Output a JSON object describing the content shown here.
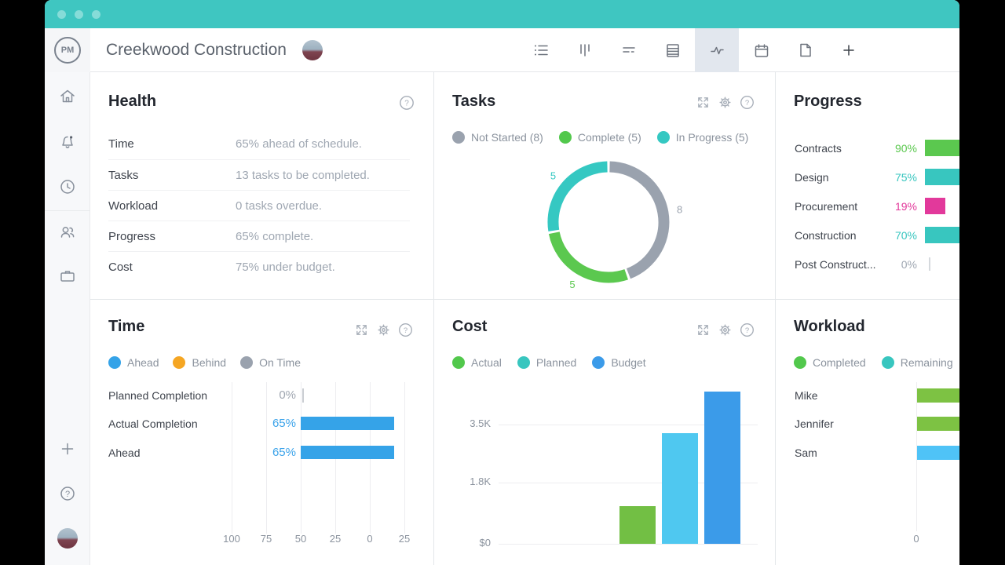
{
  "colors": {
    "titlebar_teal": "#3fc6c1",
    "selected_tab_bg": "#e2e7ee",
    "panel_border": "#e4e7ea",
    "accent_blue": "#35a3e8",
    "accent_green": "#52c84c",
    "accent_teal": "#38c6bf",
    "accent_pink": "#e2399b",
    "accent_orange": "#f5a623",
    "neutral_gray": "#9aa2ae"
  },
  "window": {
    "title": "Creekwood Construction",
    "logo_text": "PM"
  },
  "toolbar": {
    "items": [
      {
        "icon": "list-view",
        "selected": false
      },
      {
        "icon": "board-view",
        "selected": false
      },
      {
        "icon": "gantt-view",
        "selected": false
      },
      {
        "icon": "sheet-view",
        "selected": false
      },
      {
        "icon": "dashboard-view",
        "selected": true
      },
      {
        "icon": "calendar-view",
        "selected": false
      },
      {
        "icon": "page-view",
        "selected": false
      },
      {
        "icon": "add-view",
        "selected": false
      }
    ]
  },
  "sidebar": {
    "items": [
      "home",
      "notifications",
      "recent",
      "team",
      "projects"
    ],
    "bottom_items": [
      "add",
      "help",
      "account-avatar"
    ]
  },
  "panels": {
    "health": {
      "title": "Health",
      "rows": [
        {
          "label": "Time",
          "value": "65% ahead of schedule."
        },
        {
          "label": "Tasks",
          "value": "13 tasks to be completed."
        },
        {
          "label": "Workload",
          "value": "0 tasks overdue."
        },
        {
          "label": "Progress",
          "value": "65% complete."
        },
        {
          "label": "Cost",
          "value": "75% under budget."
        }
      ]
    },
    "tasks": {
      "title": "Tasks",
      "chart_data": {
        "type": "pie",
        "donut": true,
        "title": "Tasks",
        "legend": [
          {
            "label": "Not Started (8)",
            "color": "#9aa2ae"
          },
          {
            "label": "Complete (5)",
            "color": "#52c84c"
          },
          {
            "label": "In Progress (5)",
            "color": "#35c8c2"
          }
        ],
        "segments": [
          {
            "label": "Not Started",
            "value": 8,
            "color": "#9aa2ae"
          },
          {
            "label": "Complete",
            "value": 5,
            "color": "#5bc84f"
          },
          {
            "label": "In Progress",
            "value": 5,
            "color": "#35c8c2"
          }
        ]
      }
    },
    "progress": {
      "title": "Progress",
      "chart_data": {
        "type": "bar",
        "orientation": "horizontal",
        "title": "Progress",
        "rows": [
          {
            "label": "Contracts",
            "value_label": "90%",
            "value": 90,
            "color": "#5bc84f",
            "clipped": true
          },
          {
            "label": "Design",
            "value_label": "75%",
            "value": 75,
            "color": "#38c6bf",
            "clipped": true
          },
          {
            "label": "Procurement",
            "value_label": "19%",
            "value": 19,
            "color": "#e2399b",
            "clipped": false
          },
          {
            "label": "Construction",
            "value_label": "70%",
            "value": 70,
            "color": "#38c6bf",
            "clipped": true
          },
          {
            "label": "Post Construct...",
            "value_label": "0%",
            "value": 0,
            "color": "#9aa2ae",
            "clipped": false
          }
        ]
      }
    },
    "time": {
      "title": "Time",
      "legend": [
        {
          "label": "Ahead",
          "color": "#35a3e8"
        },
        {
          "label": "Behind",
          "color": "#f5a623"
        },
        {
          "label": "On Time",
          "color": "#9aa2ae"
        }
      ],
      "chart_data": {
        "type": "bar",
        "orientation": "horizontal",
        "title": "Time",
        "rows": [
          {
            "label": "Planned Completion",
            "value_label": "0%",
            "value": 0,
            "color": "#35a3e8"
          },
          {
            "label": "Actual Completion",
            "value_label": "65%",
            "value": 65,
            "color": "#35a3e8"
          },
          {
            "label": "Ahead",
            "value_label": "65%",
            "value": 65,
            "color": "#35a3e8"
          }
        ],
        "x_axis": [
          "100",
          "75",
          "50",
          "25",
          "0",
          "25"
        ]
      }
    },
    "cost": {
      "title": "Cost",
      "legend": [
        {
          "label": "Actual",
          "color": "#52c84c"
        },
        {
          "label": "Planned",
          "color": "#38c6bf"
        },
        {
          "label": "Budget",
          "color": "#3b9be9"
        }
      ],
      "chart_data": {
        "type": "bar",
        "title": "Cost",
        "series": [
          {
            "name": "Actual",
            "value": 1100,
            "color": "#72bf44"
          },
          {
            "name": "Planned",
            "value": 3250,
            "color": "#4fc8f0"
          },
          {
            "name": "Budget",
            "value": 4470,
            "color": "#3b9be9"
          }
        ],
        "y_ticks": [
          {
            "label": "$0",
            "value": 0
          },
          {
            "label": "1.8K",
            "value": 1800
          },
          {
            "label": "3.5K",
            "value": 3500
          }
        ],
        "ylim": [
          0,
          4600
        ]
      }
    },
    "workload": {
      "title": "Workload",
      "legend": [
        {
          "label": "Completed",
          "color": "#52c84c"
        },
        {
          "label": "Remaining",
          "color": "#38c6bf"
        }
      ],
      "chart_data": {
        "type": "bar",
        "orientation": "horizontal",
        "title": "Workload",
        "rows": [
          {
            "label": "Mike",
            "color": "#7dc243",
            "clipped": true
          },
          {
            "label": "Jennifer",
            "color": "#7dc243",
            "clipped": true
          },
          {
            "label": "Sam",
            "color": "#4fc3f7",
            "clipped": true
          }
        ],
        "x_axis": [
          "0"
        ]
      }
    }
  }
}
